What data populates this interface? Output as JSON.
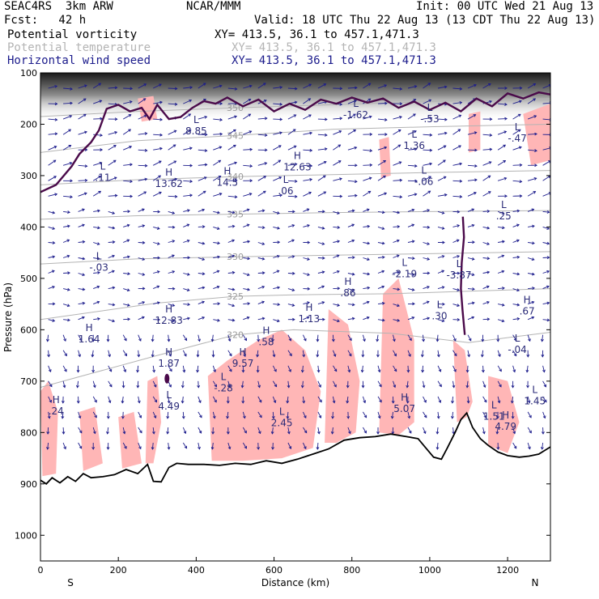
{
  "header": {
    "model": "SEAC4RS  3km ARW",
    "center": "NCAR/MMM",
    "init": "Init: 00 UTC Wed 21 Aug 13",
    "fcst": "Fcst:   42 h",
    "valid": "Valid: 18 UTC Thu 22 Aug 13 (13 CDT Thu 22 Aug 13)",
    "fields": [
      {
        "name": "Potential vorticity",
        "xy": "XY= 413.5, 36.1 to 457.1,471.3",
        "color": "#000000"
      },
      {
        "name": "Potential temperature",
        "xy": "XY= 413.5, 36.1 to 457.1,471.3",
        "color": "#b4b4b4"
      },
      {
        "name": "Horizontal wind speed",
        "xy": "XY= 413.5, 36.1 to 457.1,471.3",
        "color": "#1c1c8c"
      }
    ]
  },
  "chart_data": {
    "type": "cross-section",
    "xlabel": "Distance (km)",
    "ylabel": "Pressure (hPa)",
    "xlim": [
      0,
      1310
    ],
    "ylim": [
      1050,
      100
    ],
    "x_ticks": [
      0,
      200,
      400,
      600,
      800,
      1000,
      1200
    ],
    "y_ticks": [
      100,
      200,
      300,
      400,
      500,
      600,
      700,
      800,
      900,
      1000
    ],
    "end_labels": {
      "left": "S",
      "right": "N"
    },
    "colors": {
      "pv_fill": "#ffb6b6",
      "pv_contour": "#4a0a4a",
      "theta": "#b4b4b4",
      "wind": "#1c1c8c",
      "terrain": "#000000"
    },
    "terrain": [
      [
        0,
        893
      ],
      [
        15,
        900
      ],
      [
        30,
        888
      ],
      [
        50,
        898
      ],
      [
        70,
        886
      ],
      [
        90,
        895
      ],
      [
        110,
        880
      ],
      [
        130,
        888
      ],
      [
        160,
        886
      ],
      [
        190,
        882
      ],
      [
        220,
        872
      ],
      [
        250,
        880
      ],
      [
        275,
        862
      ],
      [
        290,
        895
      ],
      [
        310,
        896
      ],
      [
        330,
        868
      ],
      [
        350,
        860
      ],
      [
        380,
        862
      ],
      [
        420,
        862
      ],
      [
        460,
        864
      ],
      [
        500,
        860
      ],
      [
        540,
        862
      ],
      [
        580,
        855
      ],
      [
        620,
        860
      ],
      [
        660,
        852
      ],
      [
        700,
        842
      ],
      [
        740,
        832
      ],
      [
        780,
        815
      ],
      [
        820,
        810
      ],
      [
        860,
        808
      ],
      [
        900,
        803
      ],
      [
        940,
        808
      ],
      [
        970,
        812
      ],
      [
        990,
        830
      ],
      [
        1010,
        848
      ],
      [
        1030,
        852
      ],
      [
        1045,
        830
      ],
      [
        1065,
        800
      ],
      [
        1080,
        775
      ],
      [
        1095,
        762
      ],
      [
        1110,
        790
      ],
      [
        1130,
        812
      ],
      [
        1150,
        825
      ],
      [
        1175,
        838
      ],
      [
        1200,
        845
      ],
      [
        1230,
        848
      ],
      [
        1255,
        846
      ],
      [
        1280,
        842
      ],
      [
        1310,
        828
      ]
    ],
    "theta_isentropes": [
      {
        "value": 320,
        "label": "320",
        "points": [
          [
            0,
            712
          ],
          [
            300,
            650
          ],
          [
            500,
            610
          ],
          [
            650,
            600
          ],
          [
            900,
            607
          ],
          [
            1100,
            625
          ],
          [
            1310,
            605
          ]
        ]
      },
      {
        "value": 325,
        "label": "325",
        "points": [
          [
            0,
            580
          ],
          [
            300,
            548
          ],
          [
            500,
            535
          ],
          [
            650,
            532
          ],
          [
            900,
            530
          ],
          [
            1100,
            525
          ],
          [
            1310,
            520
          ]
        ]
      },
      {
        "value": 330,
        "label": "330",
        "points": [
          [
            0,
            472
          ],
          [
            250,
            462
          ],
          [
            500,
            458
          ],
          [
            750,
            455
          ],
          [
            1000,
            452
          ],
          [
            1310,
            448
          ]
        ]
      },
      {
        "value": 335,
        "label": "335",
        "points": [
          [
            0,
            385
          ],
          [
            250,
            378
          ],
          [
            500,
            375
          ],
          [
            750,
            372
          ],
          [
            1000,
            370
          ],
          [
            1310,
            368
          ]
        ]
      },
      {
        "value": 340,
        "label": "340",
        "points": [
          [
            0,
            318
          ],
          [
            250,
            308
          ],
          [
            500,
            302
          ],
          [
            750,
            298
          ],
          [
            1000,
            294
          ],
          [
            1310,
            290
          ]
        ]
      },
      {
        "value": 345,
        "label": "345",
        "points": [
          [
            0,
            255
          ],
          [
            250,
            232
          ],
          [
            500,
            222
          ],
          [
            750,
            210
          ],
          [
            1000,
            205
          ],
          [
            1310,
            200
          ]
        ]
      },
      {
        "value": 350,
        "label": "350",
        "points": [
          [
            0,
            185
          ],
          [
            250,
            175
          ],
          [
            500,
            168
          ],
          [
            750,
            162
          ],
          [
            1000,
            156
          ],
          [
            1310,
            150
          ]
        ]
      }
    ],
    "pv_2pvu_contour": [
      [
        0,
        332
      ],
      [
        40,
        318
      ],
      [
        80,
        282
      ],
      [
        100,
        258
      ],
      [
        130,
        235
      ],
      [
        150,
        212
      ],
      [
        170,
        170
      ],
      [
        200,
        162
      ],
      [
        230,
        175
      ],
      [
        260,
        168
      ],
      [
        280,
        190
      ],
      [
        300,
        162
      ],
      [
        330,
        190
      ],
      [
        360,
        186
      ],
      [
        390,
        168
      ],
      [
        420,
        155
      ],
      [
        450,
        160
      ],
      [
        480,
        148
      ],
      [
        520,
        165
      ],
      [
        560,
        152
      ],
      [
        600,
        175
      ],
      [
        640,
        160
      ],
      [
        680,
        172
      ],
      [
        720,
        152
      ],
      [
        760,
        160
      ],
      [
        800,
        148
      ],
      [
        840,
        158
      ],
      [
        880,
        150
      ],
      [
        920,
        168
      ],
      [
        960,
        156
      ],
      [
        1000,
        172
      ],
      [
        1040,
        158
      ],
      [
        1080,
        175
      ],
      [
        1120,
        150
      ],
      [
        1160,
        165
      ],
      [
        1200,
        140
      ],
      [
        1240,
        150
      ],
      [
        1280,
        138
      ],
      [
        1310,
        142
      ]
    ],
    "pv_highs": [
      {
        "x": 40,
        "p": 765,
        "label": ".24"
      },
      {
        "x": 125,
        "p": 625,
        "label": "1.64"
      },
      {
        "x": 330,
        "p": 588,
        "label": "12.83"
      },
      {
        "x": 330,
        "p": 672,
        "label": "1.87"
      },
      {
        "x": 520,
        "p": 672,
        "label": "9.57"
      },
      {
        "x": 580,
        "p": 630,
        "label": ".58"
      },
      {
        "x": 690,
        "p": 585,
        "label": "1.13"
      },
      {
        "x": 790,
        "p": 535,
        "label": ".86"
      },
      {
        "x": 935,
        "p": 760,
        "label": "5.07"
      },
      {
        "x": 1250,
        "p": 570,
        "label": ".67"
      },
      {
        "x": 1195,
        "p": 795,
        "label": "4.79"
      },
      {
        "x": 480,
        "p": 320,
        "label": "14.5"
      },
      {
        "x": 660,
        "p": 290,
        "label": "12.63"
      },
      {
        "x": 330,
        "p": 322,
        "label": "13.62"
      }
    ],
    "pv_lows": [
      {
        "x": 160,
        "p": 310,
        "label": ".11"
      },
      {
        "x": 150,
        "p": 485,
        "label": "-.03"
      },
      {
        "x": 330,
        "p": 755,
        "label": "4.49"
      },
      {
        "x": 470,
        "p": 720,
        "label": "-.28"
      },
      {
        "x": 620,
        "p": 788,
        "label": "2.45"
      },
      {
        "x": 400,
        "p": 220,
        "label": "8.85"
      },
      {
        "x": 630,
        "p": 336,
        "label": ".06"
      },
      {
        "x": 810,
        "p": 188,
        "label": "-1.62"
      },
      {
        "x": 960,
        "p": 248,
        "label": "1.36"
      },
      {
        "x": 985,
        "p": 318,
        "label": "-.06"
      },
      {
        "x": 1000,
        "p": 196,
        "label": "-.53"
      },
      {
        "x": 1225,
        "p": 234,
        "label": "-.47"
      },
      {
        "x": 935,
        "p": 498,
        "label": "-2.19"
      },
      {
        "x": 1075,
        "p": 500,
        "label": "-3.87"
      },
      {
        "x": 1190,
        "p": 385,
        "label": ".25"
      },
      {
        "x": 1225,
        "p": 645,
        "label": "-.04"
      },
      {
        "x": 1025,
        "p": 580,
        "label": ".30"
      },
      {
        "x": 1165,
        "p": 775,
        "label": "1.51"
      },
      {
        "x": 1270,
        "p": 745,
        "label": "1.45"
      }
    ]
  }
}
